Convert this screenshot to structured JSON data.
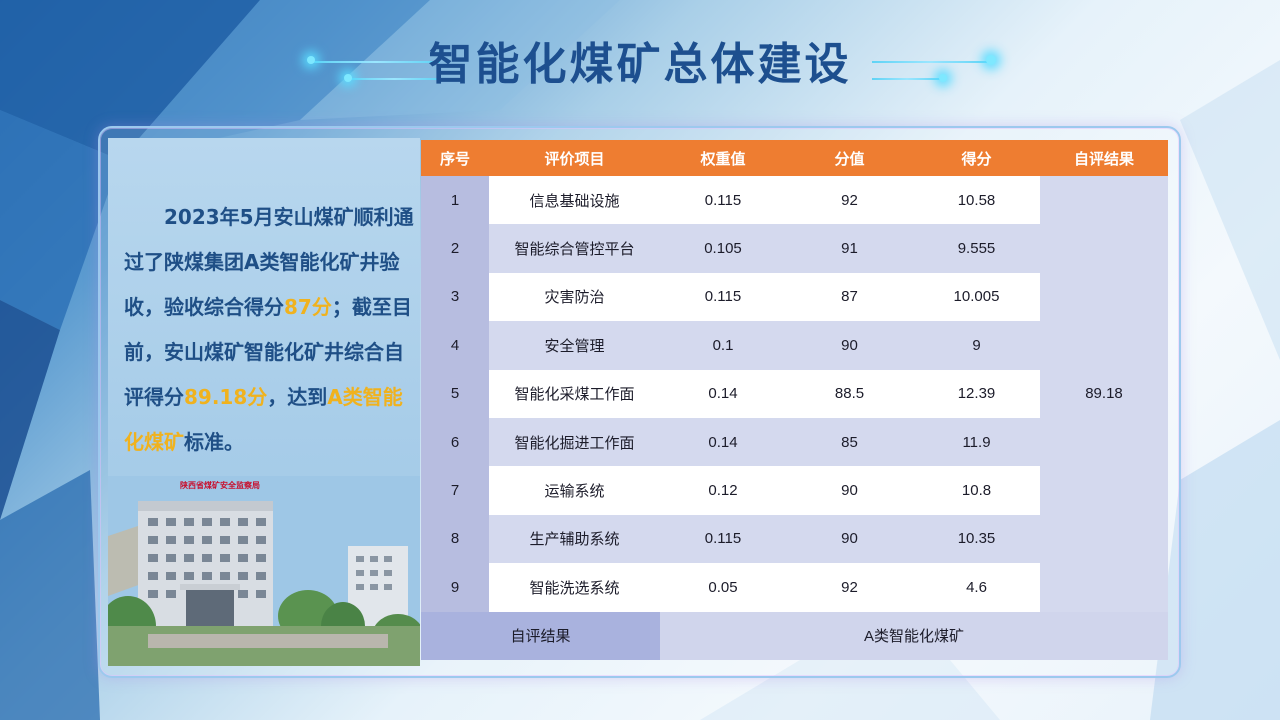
{
  "title": "智能化煤矿总体建设",
  "description": {
    "p1": "2023年5月安山煤矿顺利通过了陕煤集团A类智能化矿井验收，验收综合得分",
    "h1": "87分",
    "p2": "；截至目前，安山煤矿智能化矿井综合自评得分",
    "h2": "89.18分",
    "p3": "，达到",
    "h3": "A类智能化煤矿",
    "p4": "标准。"
  },
  "table": {
    "headers": [
      "序号",
      "评价项目",
      "权重值",
      "分值",
      "得分",
      "自评结果"
    ],
    "rows": [
      {
        "seq": "1",
        "item": "信息基础设施",
        "weight": "0.115",
        "value": "92",
        "score": "10.58"
      },
      {
        "seq": "2",
        "item": "智能综合管控平台",
        "weight": "0.105",
        "value": "91",
        "score": "9.555"
      },
      {
        "seq": "3",
        "item": "灾害防治",
        "weight": "0.115",
        "value": "87",
        "score": "10.005"
      },
      {
        "seq": "4",
        "item": "安全管理",
        "weight": "0.1",
        "value": "90",
        "score": "9"
      },
      {
        "seq": "5",
        "item": "智能化采煤工作面",
        "weight": "0.14",
        "value": "88.5",
        "score": "12.39"
      },
      {
        "seq": "6",
        "item": "智能化掘进工作面",
        "weight": "0.14",
        "value": "85",
        "score": "11.9"
      },
      {
        "seq": "7",
        "item": "运输系统",
        "weight": "0.12",
        "value": "90",
        "score": "10.8"
      },
      {
        "seq": "8",
        "item": "生产辅助系统",
        "weight": "0.115",
        "value": "90",
        "score": "10.35"
      },
      {
        "seq": "9",
        "item": "智能洗选系统",
        "weight": "0.05",
        "value": "92",
        "score": "4.6"
      }
    ],
    "total_result": "89.18",
    "footer_label": "自评结果",
    "footer_value": "A类智能化煤矿"
  },
  "building_sign": "陕西省煤矿安全监察局"
}
